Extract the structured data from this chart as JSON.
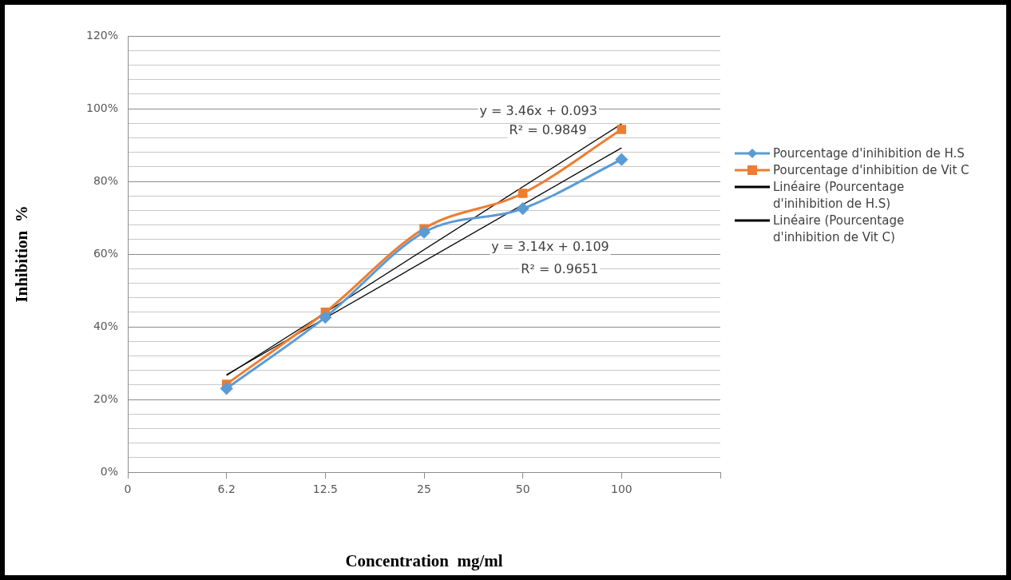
{
  "chart_data": {
    "type": "line",
    "xlabel": "Concentration  mg/ml",
    "ylabel": "Inhibition  %",
    "categories": [
      "0",
      "6.2",
      "12.5",
      "25",
      "50",
      "100",
      null
    ],
    "ylim": [
      0,
      120
    ],
    "yticks": [
      {
        "value": 0,
        "label": "0%"
      },
      {
        "value": 4,
        "label": null
      },
      {
        "value": 8,
        "label": null
      },
      {
        "value": 12,
        "label": null
      },
      {
        "value": 16,
        "label": null
      },
      {
        "value": 20,
        "label": "20%"
      },
      {
        "value": 24,
        "label": null
      },
      {
        "value": 28,
        "label": null
      },
      {
        "value": 32,
        "label": null
      },
      {
        "value": 36,
        "label": null
      },
      {
        "value": 40,
        "label": "40%"
      },
      {
        "value": 44,
        "label": null
      },
      {
        "value": 48,
        "label": null
      },
      {
        "value": 52,
        "label": null
      },
      {
        "value": 56,
        "label": null
      },
      {
        "value": 60,
        "label": "60%"
      },
      {
        "value": 64,
        "label": null
      },
      {
        "value": 68,
        "label": null
      },
      {
        "value": 72,
        "label": null
      },
      {
        "value": 76,
        "label": null
      },
      {
        "value": 80,
        "label": "80%"
      },
      {
        "value": 84,
        "label": null
      },
      {
        "value": 88,
        "label": null
      },
      {
        "value": 92,
        "label": null
      },
      {
        "value": 96,
        "label": null
      },
      {
        "value": 100,
        "label": "100%"
      },
      {
        "value": 104,
        "label": null
      },
      {
        "value": 108,
        "label": null
      },
      {
        "value": 112,
        "label": null
      },
      {
        "value": 116,
        "label": null
      },
      {
        "value": 120,
        "label": "120%"
      }
    ],
    "grid": "y",
    "legend": "right",
    "series": [
      {
        "name": "Pourcentage d'inihibition de H.S",
        "color": "#5b9bd5",
        "marker": "diamond",
        "values": [
          null,
          23,
          42.6,
          66,
          72.5,
          86,
          null
        ]
      },
      {
        "name": "Pourcentage d'inhibition de Vit C",
        "color": "#ed7d31",
        "marker": "square",
        "values": [
          null,
          24.2,
          44,
          67,
          76.7,
          94.3,
          null
        ]
      },
      {
        "name": "Linéaire (Pourcentage d'inihibition de H.S)",
        "color": "#000000",
        "marker": "none",
        "values": [
          null,
          26.8,
          null,
          null,
          null,
          89.2,
          null
        ]
      },
      {
        "name": "Linéaire (Pourcentage d'inhibition de Vit C)",
        "color": "#000000",
        "marker": "none",
        "values": [
          null,
          26.6,
          null,
          null,
          null,
          95.8,
          null
        ]
      }
    ],
    "annotations": [
      "y = 3.46x + 0.093",
      "R² = 0.9849",
      "y = 3.14x + 0.109",
      "R² = 0.9651"
    ]
  }
}
